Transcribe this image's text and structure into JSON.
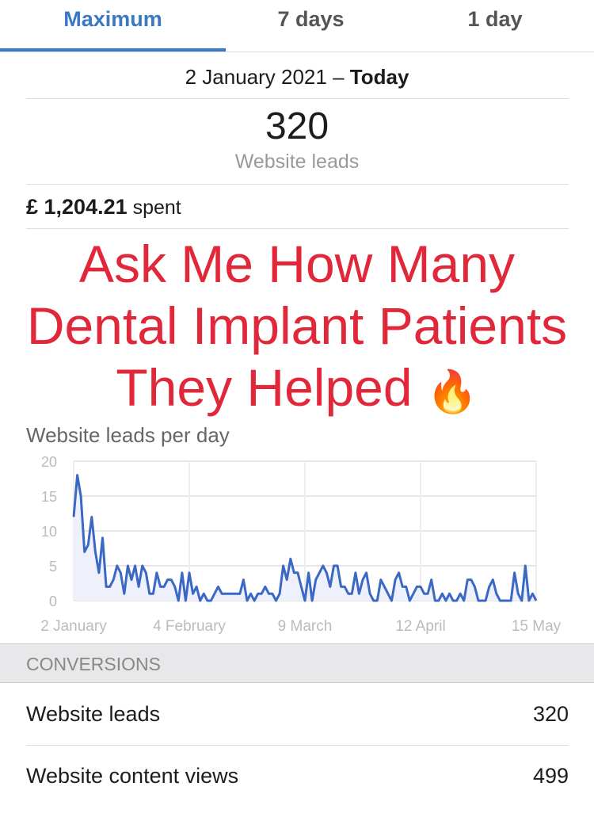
{
  "tabs": [
    {
      "label": "Maximum",
      "active": true
    },
    {
      "label": "7 days"
    },
    {
      "label": "1 day"
    }
  ],
  "date_range": {
    "start": "2 January 2021 –",
    "end": "Today"
  },
  "summary": {
    "value": "320",
    "label": "Website leads"
  },
  "spend": {
    "amount": "£ 1,204.21",
    "label": "spent"
  },
  "chart_title": "Website leads per day",
  "overlay": {
    "line1": "Ask Me How Many",
    "line2": "Dental Implant Patients",
    "line3": "They Helped",
    "emoji": "🔥",
    "color": "#e0283a"
  },
  "chart_data": {
    "type": "area",
    "title": "Website leads per day",
    "x_ticks": [
      "2 January",
      "4 February",
      "9 March",
      "12 April",
      "15 May"
    ],
    "y_ticks": [
      "0",
      "5",
      "10",
      "15",
      "20"
    ],
    "ylim": [
      0,
      20
    ],
    "grid": true,
    "line_color": "#3a68c4",
    "fill_color": "#eef1fb",
    "values": [
      12,
      18,
      15,
      7,
      8,
      12,
      7,
      4,
      9,
      2,
      2,
      3,
      5,
      4,
      1,
      5,
      3,
      5,
      2,
      5,
      4,
      1,
      1,
      4,
      2,
      2,
      3,
      3,
      2,
      0,
      4,
      0,
      4,
      1,
      2,
      0,
      1,
      0,
      0,
      1,
      2,
      1,
      1,
      1,
      1,
      1,
      1,
      3,
      0,
      1,
      0,
      1,
      1,
      2,
      1,
      1,
      0,
      1,
      5,
      3,
      6,
      4,
      4,
      2,
      0,
      4,
      0,
      3,
      4,
      5,
      4,
      2,
      5,
      5,
      2,
      2,
      1,
      1,
      4,
      1,
      3,
      4,
      1,
      0,
      0,
      3,
      2,
      1,
      0,
      3,
      4,
      2,
      2,
      0,
      1,
      2,
      2,
      1,
      1,
      3,
      0,
      0,
      1,
      0,
      1,
      0,
      0,
      1,
      0,
      3,
      3,
      2,
      0,
      0,
      0,
      2,
      3,
      1,
      0,
      0,
      0,
      0,
      4,
      1,
      0,
      5,
      0,
      1,
      0
    ]
  },
  "conversions": {
    "header": "CONVERSIONS",
    "rows": [
      {
        "label": "Website leads",
        "value": "320"
      },
      {
        "label": "Website content views",
        "value": "499"
      }
    ]
  }
}
